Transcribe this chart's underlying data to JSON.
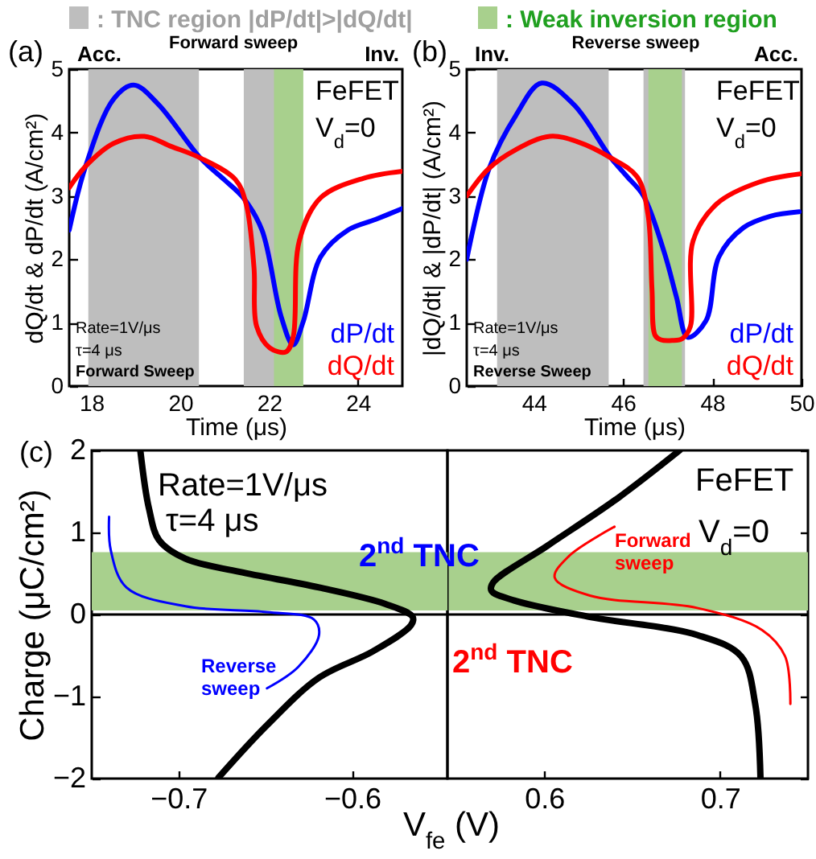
{
  "chart_data": [
    {
      "type": "line",
      "xlabel": "Time (μs)",
      "ylabel": "dQ/dt & dP/dt (A/cm²)",
      "xlim": [
        17.5,
        25
      ],
      "xticks": [
        18,
        20,
        22,
        24
      ],
      "ylim": [
        0,
        5
      ],
      "yticks": [
        0,
        1,
        2,
        3,
        4,
        5
      ],
      "legend": "top",
      "series": [
        {
          "name": "dP/dt",
          "color": "#0000ff",
          "x": [
            17.5,
            17.87,
            18.5,
            18.95,
            19.5,
            20.45,
            21.0,
            21.42,
            21.84,
            22.27,
            22.54,
            22.77,
            23.16,
            23.77,
            24.4,
            25.0
          ],
          "values": [
            2.46,
            3.47,
            4.53,
            4.75,
            4.45,
            3.6,
            3.25,
            2.97,
            2.46,
            1.1,
            0.65,
            1.02,
            2.04,
            2.46,
            2.63,
            2.8
          ]
        },
        {
          "name": "dQ/dt",
          "color": "#ff0000",
          "x": [
            17.5,
            17.87,
            18.5,
            19.19,
            19.8,
            20.45,
            21.24,
            21.48,
            21.66,
            21.72,
            22.02,
            22.38,
            22.54,
            22.68,
            23.16,
            24.13,
            25.0
          ],
          "values": [
            3.13,
            3.47,
            3.83,
            3.94,
            3.78,
            3.6,
            3.26,
            2.88,
            1.87,
            0.94,
            0.6,
            0.54,
            0.77,
            2.29,
            2.97,
            3.28,
            3.39
          ]
        }
      ],
      "bands": [
        {
          "axis": "x",
          "from": 17.93,
          "to": 20.42,
          "color": "#bebebe",
          "label": ": TNC region |dP/dt|>|dQ/dt|"
        },
        {
          "axis": "x",
          "from": 21.43,
          "to": 22.55,
          "color": "#bebebe"
        },
        {
          "axis": "x",
          "from": 22.11,
          "to": 22.77,
          "color": "#a8d08d"
        }
      ],
      "annotations": [
        "(a)",
        "Acc.",
        "Forward sweep",
        "Inv.",
        "FeFET",
        "V$_{d}$=0",
        "Rate=1V/μs",
        "τ=4 μs",
        "Forward Sweep"
      ]
    },
    {
      "type": "line",
      "xlabel": "Time (μs)",
      "ylabel": "|dQ/dt| & |dP/dt| (A/cm²)",
      "xlim": [
        42.5,
        50
      ],
      "xticks": [
        44,
        46,
        48,
        50
      ],
      "ylim": [
        0,
        5
      ],
      "yticks": [
        0,
        1,
        2,
        3,
        4,
        5
      ],
      "legend": "top",
      "series": [
        {
          "name": "dP/dt",
          "color": "#0000ff",
          "x": [
            42.5,
            43.0,
            43.6,
            44.18,
            44.9,
            45.73,
            46.1,
            46.46,
            46.92,
            47.2,
            47.45,
            47.86,
            48.15,
            48.7,
            49.3,
            49.95
          ],
          "values": [
            2.0,
            3.43,
            4.27,
            4.78,
            4.44,
            3.6,
            3.3,
            3.0,
            2.12,
            1.4,
            0.77,
            1.03,
            2.04,
            2.5,
            2.68,
            2.75
          ]
        },
        {
          "name": "dQ/dt",
          "color": "#ff0000",
          "x": [
            42.5,
            42.99,
            43.6,
            44.36,
            45.0,
            45.73,
            46.32,
            46.56,
            46.65,
            46.72,
            46.85,
            47.1,
            47.33,
            47.51,
            47.57,
            48.11,
            49.06,
            50.0
          ],
          "values": [
            3.0,
            3.43,
            3.73,
            3.94,
            3.85,
            3.6,
            3.3,
            2.71,
            1.53,
            0.8,
            0.73,
            0.72,
            0.75,
            0.94,
            2.29,
            2.88,
            3.22,
            3.35
          ]
        }
      ],
      "bands": [
        {
          "axis": "x",
          "from": 43.18,
          "to": 45.68,
          "color": "#bebebe"
        },
        {
          "axis": "x",
          "from": 46.46,
          "to": 47.39,
          "color": "#bebebe"
        },
        {
          "axis": "x",
          "from": 46.57,
          "to": 47.32,
          "color": "#a8d08d",
          "label": ": Weak inversion region"
        }
      ],
      "annotations": [
        "(b)",
        "Inv.",
        "Reverse sweep",
        "Acc.",
        "FeFET",
        "V$_{d}$=0",
        "Rate=1V/μs",
        "τ=4 μs",
        "Reverse Sweep"
      ]
    },
    {
      "type": "line",
      "xlabel": "V$_{fe}$ (V)",
      "ylabel": "Charge (μC/cm²)",
      "xlim": [
        -0.75,
        -0.545
      ],
      "xticks": [
        -0.7,
        -0.6
      ],
      "ylim": [
        -2,
        2
      ],
      "yticks": [
        -2,
        -1,
        0,
        1,
        2
      ],
      "series": [
        {
          "color": "#000000",
          "x": [
            -0.722,
            -0.717,
            -0.711,
            -0.696,
            -0.665,
            -0.619,
            -0.581,
            -0.565,
            -0.566,
            -0.588,
            -0.619,
            -0.649,
            -0.677
          ],
          "values": [
            2,
            1.29,
            0.9,
            0.68,
            0.52,
            0.33,
            0.13,
            -0.03,
            -0.13,
            -0.45,
            -0.77,
            -1.35,
            -1.99
          ]
        },
        {
          "color": "#0000ff",
          "x": [
            -0.74,
            -0.739,
            -0.73,
            -0.696,
            -0.649,
            -0.622,
            -0.619,
            -0.631,
            -0.649
          ],
          "values": [
            1.19,
            0.78,
            0.33,
            0.1,
            0.03,
            -0.06,
            -0.25,
            -0.64,
            -0.9
          ]
        }
      ],
      "bands": [
        {
          "axis": "y",
          "from": 0.05,
          "to": 0.76,
          "color": "#a8d08d"
        }
      ],
      "ref_lines": [
        {
          "axis": "y",
          "value": 0
        }
      ],
      "annotations": [
        "(c)",
        "Rate=1V/μs",
        "τ=4 μs",
        "2$^{nd}$ TNC",
        "Reverse sweep"
      ]
    },
    {
      "type": "line",
      "xlim": [
        0.545,
        0.75
      ],
      "xticks": [
        0.6,
        0.7
      ],
      "ylim": [
        -2,
        2
      ],
      "yticks": [
        -2,
        -1,
        0,
        1,
        2
      ],
      "tick_labels": "x",
      "series": [
        {
          "color": "#000000",
          "x": [
            0.677,
            0.642,
            0.602,
            0.571,
            0.57,
            0.583,
            0.626,
            0.687,
            0.712,
            0.72,
            0.723
          ],
          "values": [
            2,
            1.42,
            0.84,
            0.39,
            0.29,
            0.17,
            -0.03,
            -0.25,
            -0.51,
            -1.09,
            -1.99
          ]
        },
        {
          "color": "#ff0000",
          "x": [
            0.64,
            0.614,
            0.606,
            0.626,
            0.687,
            0.724,
            0.737,
            0.74
          ],
          "values": [
            1.07,
            0.71,
            0.45,
            0.23,
            0.08,
            -0.19,
            -0.51,
            -1.09
          ]
        }
      ],
      "bands": [
        {
          "axis": "y",
          "from": 0.05,
          "to": 0.76,
          "color": "#a8d08d"
        }
      ],
      "ref_lines": [
        {
          "axis": "y",
          "value": 0
        }
      ],
      "annotations": [
        "FeFET",
        "V$_{d}$=0",
        "Forward sweep",
        "2$^{nd}$ TNC"
      ]
    }
  ]
}
